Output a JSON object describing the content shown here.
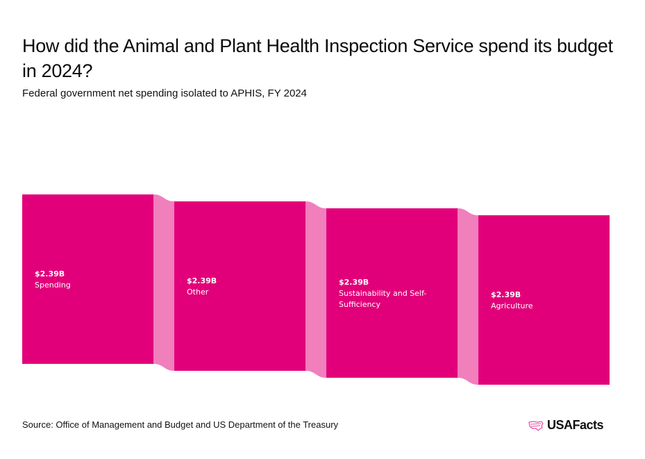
{
  "header": {
    "title": "How did the Animal and Plant Health Inspection Service spend its budget in 2024?",
    "subtitle": "Federal government net spending isolated to APHIS, FY 2024"
  },
  "footer": {
    "source": "Source: Office of Management and Budget and US Department of the Treasury",
    "brand": "USAFacts"
  },
  "colors": {
    "node": "#e2007a",
    "link": "#f07fbc"
  },
  "chart_data": {
    "type": "sankey",
    "title": "How did the Animal and Plant Health Inspection Service spend its budget in 2024?",
    "subtitle": "Federal government net spending isolated to APHIS, FY 2024",
    "unit": "billions USD",
    "nodes": [
      {
        "name": "Spending",
        "value": 2.39,
        "label": "$2.39B"
      },
      {
        "name": "Other",
        "value": 2.39,
        "label": "$2.39B"
      },
      {
        "name": "Sustainability and Self-Sufficiency",
        "value": 2.39,
        "label": "$2.39B",
        "label_lines": [
          "Sustainability and Self-",
          "Sufficiency"
        ]
      },
      {
        "name": "Agriculture",
        "value": 2.39,
        "label": "$2.39B"
      }
    ],
    "links": [
      {
        "source": "Spending",
        "target": "Other",
        "value": 2.39
      },
      {
        "source": "Other",
        "target": "Sustainability and Self-Sufficiency",
        "value": 2.39
      },
      {
        "source": "Sustainability and Self-Sufficiency",
        "target": "Agriculture",
        "value": 2.39
      }
    ]
  }
}
